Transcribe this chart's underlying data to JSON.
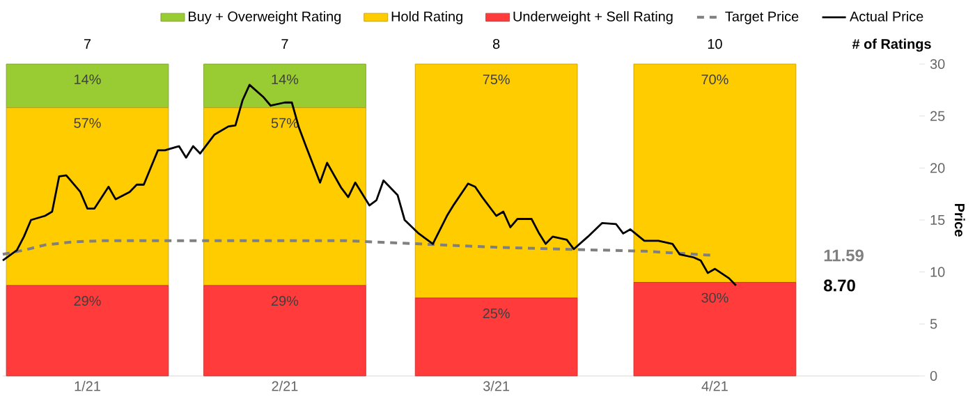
{
  "chart_data": {
    "type": "bar",
    "stacked": true,
    "legend": "top",
    "x": [
      "2021-01-16",
      "2021-02-13",
      "2021-03-15",
      "2021-04-15"
    ],
    "xlim": [
      "2021-01-04",
      "2021-05-14"
    ],
    "xticks": [
      {
        "value": "2021-01-16",
        "label": "1/21"
      },
      {
        "value": "2021-02-13",
        "label": "2/21"
      },
      {
        "value": "2021-03-15",
        "label": "3/21"
      },
      {
        "value": "2021-04-15",
        "label": "4/21"
      }
    ],
    "y2label": "Price",
    "y2lim": [
      0,
      30
    ],
    "y2ticks": [
      0,
      5,
      10,
      15,
      20,
      25,
      30
    ],
    "series": [
      {
        "name": "Underweight + Sell Rating",
        "color": "#ff3b3b",
        "values": [
          29,
          29,
          25,
          30
        ],
        "value_labels": [
          "29%",
          "29%",
          "25%",
          "30%"
        ]
      },
      {
        "name": "Hold Rating",
        "color": "#ffcc00",
        "values": [
          57,
          57,
          75,
          70
        ],
        "value_labels": [
          "57%",
          "57%",
          "75%",
          "70%"
        ]
      },
      {
        "name": "Buy + Overweight Rating",
        "color": "#99cc33",
        "values": [
          14,
          14,
          0,
          0
        ],
        "value_labels": [
          "14%",
          "14%",
          null,
          null
        ]
      },
      {
        "name": "Target Price",
        "type": "line",
        "axis": "y2",
        "color": "#808080",
        "line_style": "dashed",
        "x": [
          "2021-01-04",
          "2021-01-07",
          "2021-01-10",
          "2021-01-14",
          "2021-01-18",
          "2021-02-22",
          "2021-03-04",
          "2021-03-14",
          "2021-03-24",
          "2021-04-05",
          "2021-04-15"
        ],
        "values": [
          11.7,
          12.1,
          12.6,
          12.9,
          13.0,
          13.0,
          12.7,
          12.4,
          12.2,
          12.0,
          11.59
        ]
      },
      {
        "name": "Actual Price",
        "type": "line",
        "axis": "y2",
        "color": "#000000",
        "line_style": "solid",
        "x": [
          "2021-01-04",
          "2021-01-06",
          "2021-01-07",
          "2021-01-08",
          "2021-01-10",
          "2021-01-11",
          "2021-01-12",
          "2021-01-13",
          "2021-01-15",
          "2021-01-16",
          "2021-01-17",
          "2021-01-19",
          "2021-01-20",
          "2021-01-22",
          "2021-01-23",
          "2021-01-24",
          "2021-01-26",
          "2021-01-27",
          "2021-01-29",
          "2021-01-30",
          "2021-01-31",
          "2021-02-01",
          "2021-02-03",
          "2021-02-05",
          "2021-02-06",
          "2021-02-07",
          "2021-02-08",
          "2021-02-10",
          "2021-02-11",
          "2021-02-13",
          "2021-02-14",
          "2021-02-15",
          "2021-02-16",
          "2021-02-18",
          "2021-02-19",
          "2021-02-21",
          "2021-02-22",
          "2021-02-23",
          "2021-02-25",
          "2021-02-26",
          "2021-02-27",
          "2021-03-01",
          "2021-03-02",
          "2021-03-04",
          "2021-03-06",
          "2021-03-08",
          "2021-03-09",
          "2021-03-11",
          "2021-03-12",
          "2021-03-13",
          "2021-03-15",
          "2021-03-16",
          "2021-03-17",
          "2021-03-18",
          "2021-03-20",
          "2021-03-21",
          "2021-03-22",
          "2021-03-23",
          "2021-03-25",
          "2021-03-26",
          "2021-03-28",
          "2021-03-30",
          "2021-04-01",
          "2021-04-02",
          "2021-04-03",
          "2021-04-05",
          "2021-04-07",
          "2021-04-09",
          "2021-04-10",
          "2021-04-12",
          "2021-04-13",
          "2021-04-14",
          "2021-04-15",
          "2021-04-17",
          "2021-04-18"
        ],
        "values": [
          11.1,
          12.1,
          13.4,
          15.0,
          15.4,
          15.8,
          19.2,
          19.3,
          17.7,
          16.1,
          16.1,
          18.2,
          17.0,
          17.7,
          18.4,
          18.4,
          21.7,
          21.7,
          22.1,
          21.0,
          22.1,
          21.4,
          23.2,
          24.0,
          24.1,
          26.5,
          28.0,
          26.8,
          26.0,
          26.3,
          26.3,
          23.9,
          22.1,
          18.6,
          20.5,
          18.1,
          17.2,
          18.6,
          16.4,
          16.9,
          18.8,
          17.4,
          15.0,
          13.7,
          12.7,
          15.4,
          16.5,
          18.5,
          18.2,
          17.2,
          15.4,
          15.8,
          14.3,
          15.1,
          15.1,
          13.8,
          12.7,
          13.4,
          13.1,
          12.2,
          13.4,
          14.7,
          14.6,
          13.7,
          14.1,
          13.0,
          13.0,
          12.7,
          11.7,
          11.4,
          11.1,
          9.9,
          10.3,
          9.4,
          8.7
        ]
      }
    ],
    "annotations": [
      "7",
      "7",
      "8",
      "10",
      "# of Ratings",
      "11.59",
      "8.70"
    ]
  }
}
